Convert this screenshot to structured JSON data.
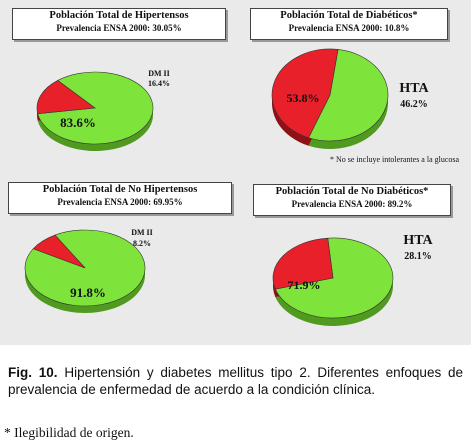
{
  "chart_data": [
    {
      "type": "pie",
      "title": "Población Total de Hipertensos",
      "subtitle": "Prevalencia ENSA 2000: 30.05%",
      "categories": [
        "",
        "DM II"
      ],
      "values": [
        83.6,
        16.4
      ],
      "labels": [
        "83.6%",
        "16.4%"
      ],
      "colors": [
        "#7ee33a",
        "#e8202a"
      ],
      "legend_names": [
        "",
        "DM II"
      ]
    },
    {
      "type": "pie",
      "title": "Población Total de Diabéticos*",
      "subtitle": "Prevalencia ENSA 2000: 10.8%",
      "categories": [
        "",
        "HTA"
      ],
      "values": [
        53.8,
        46.2
      ],
      "labels": [
        "53.8%",
        "46.2%"
      ],
      "colors": [
        "#7ee33a",
        "#e8202a"
      ],
      "legend_names": [
        "",
        "HTA"
      ],
      "footnote": "* No se incluye intolerantes a la glucosa"
    },
    {
      "type": "pie",
      "title": "Población Total de No Hipertensos",
      "subtitle": "Prevalencia ENSA 2000: 69.95%",
      "categories": [
        "",
        "DM II"
      ],
      "values": [
        91.8,
        8.2
      ],
      "labels": [
        "91.8%",
        "8.2%"
      ],
      "colors": [
        "#7ee33a",
        "#e8202a"
      ],
      "legend_names": [
        "",
        "DM II"
      ]
    },
    {
      "type": "pie",
      "title": "Población Total de No Diabéticos*",
      "subtitle": "Prevalencia ENSA 2000: 89.2%",
      "categories": [
        "",
        "HTA"
      ],
      "values": [
        71.9,
        28.1
      ],
      "labels": [
        "71.9%",
        "28.1%"
      ],
      "colors": [
        "#7ee33a",
        "#e8202a"
      ],
      "legend_names": [
        "",
        "HTA"
      ]
    }
  ],
  "caption": {
    "label": "Fig. 10.",
    "text": "Hipertensión y diabetes mellitus tipo 2. Diferentes enfoques de prevalencia de enfermedad de acuerdo a la condición clínica."
  },
  "note": "* Ilegibilidad de origen."
}
